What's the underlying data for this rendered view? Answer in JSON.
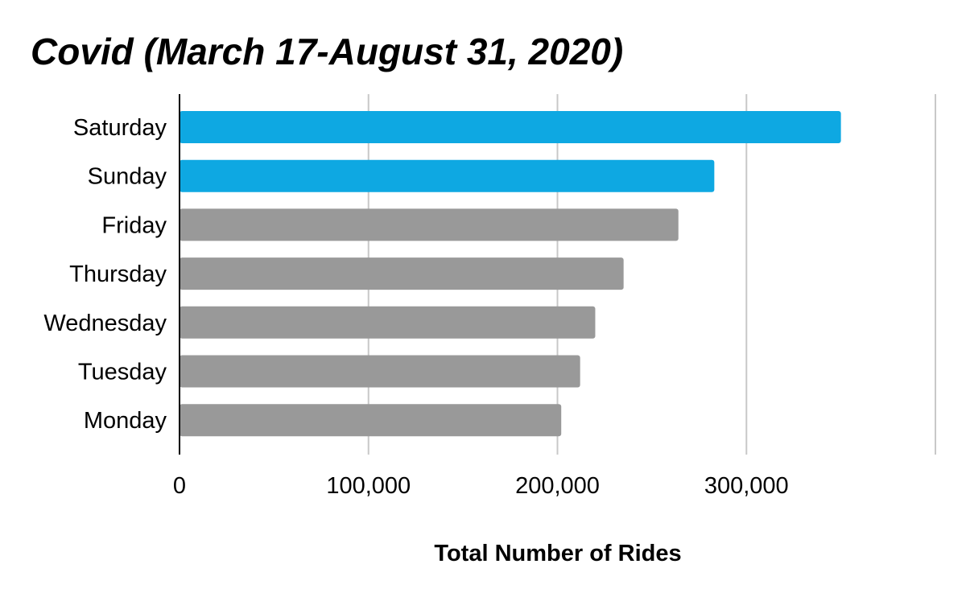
{
  "chart_data": {
    "type": "bar",
    "orientation": "horizontal",
    "title": "Covid (March 17-August 31, 2020)",
    "xlabel": "Total Number of Rides",
    "ylabel": "",
    "categories": [
      "Saturday",
      "Sunday",
      "Friday",
      "Thursday",
      "Wednesday",
      "Tuesday",
      "Monday"
    ],
    "values": [
      350000,
      283000,
      264000,
      235000,
      220000,
      212000,
      202000
    ],
    "xlim": [
      0,
      400000
    ],
    "x_ticks": [
      0,
      100000,
      200000,
      300000
    ],
    "x_tick_labels": [
      "0",
      "100,000",
      "200,000",
      "300,000"
    ],
    "grid": true,
    "colors": {
      "highlight": "#0ea8e2",
      "default": "#999999",
      "gridline": "#c8c8c8",
      "axis": "#000000"
    },
    "bar_colors": [
      "highlight",
      "highlight",
      "default",
      "default",
      "default",
      "default",
      "default"
    ]
  }
}
